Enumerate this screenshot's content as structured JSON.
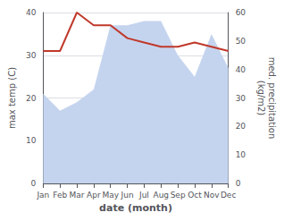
{
  "chart_data": {
    "type": "line",
    "xlabel": "date (month)",
    "ylabel": "max temp (C)",
    "y2label": "med. precipitation\n(kg/m2)",
    "categories": [
      "Jan",
      "Feb",
      "Mar",
      "Apr",
      "May",
      "Jun",
      "Jul",
      "Aug",
      "Sep",
      "Oct",
      "Nov",
      "Dec"
    ],
    "series": [
      {
        "type": "area",
        "color": "#c5d4ee",
        "values": [
          21,
          17,
          19,
          22,
          37,
          37,
          38,
          38,
          30,
          25,
          35,
          27
        ]
      },
      {
        "type": "line",
        "color": "#c0392b",
        "values": [
          31,
          31,
          40,
          37,
          37,
          34,
          33,
          32,
          32,
          33,
          32,
          31
        ]
      }
    ],
    "ylim": [
      0,
      40
    ],
    "yticks": [
      0,
      10,
      20,
      30,
      40
    ],
    "y2lim": [
      0,
      60
    ],
    "y2ticks": [
      0,
      10,
      20,
      30,
      40,
      50,
      60
    ],
    "grid": true
  }
}
